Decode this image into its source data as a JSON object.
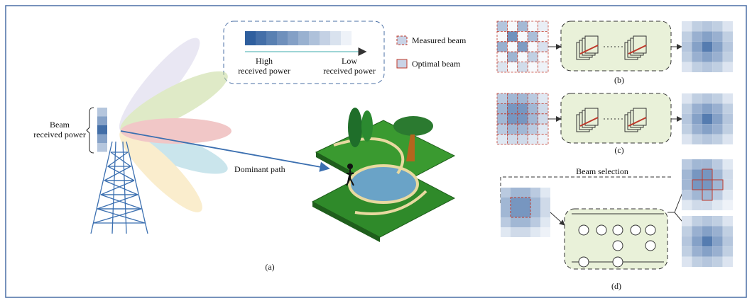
{
  "labels": {
    "beam_power": [
      "Beam",
      "received power"
    ],
    "dominant_path": "Dominant path",
    "beam_selection": "Beam selection"
  },
  "legend": {
    "high": [
      "High",
      "received power"
    ],
    "low": [
      "Low",
      "received power"
    ],
    "measured": "Measured beam",
    "optimal": "Optimal beam"
  },
  "panels": {
    "a": "(a)",
    "b": "(b)",
    "c": "(c)",
    "d": "(d)"
  }
}
